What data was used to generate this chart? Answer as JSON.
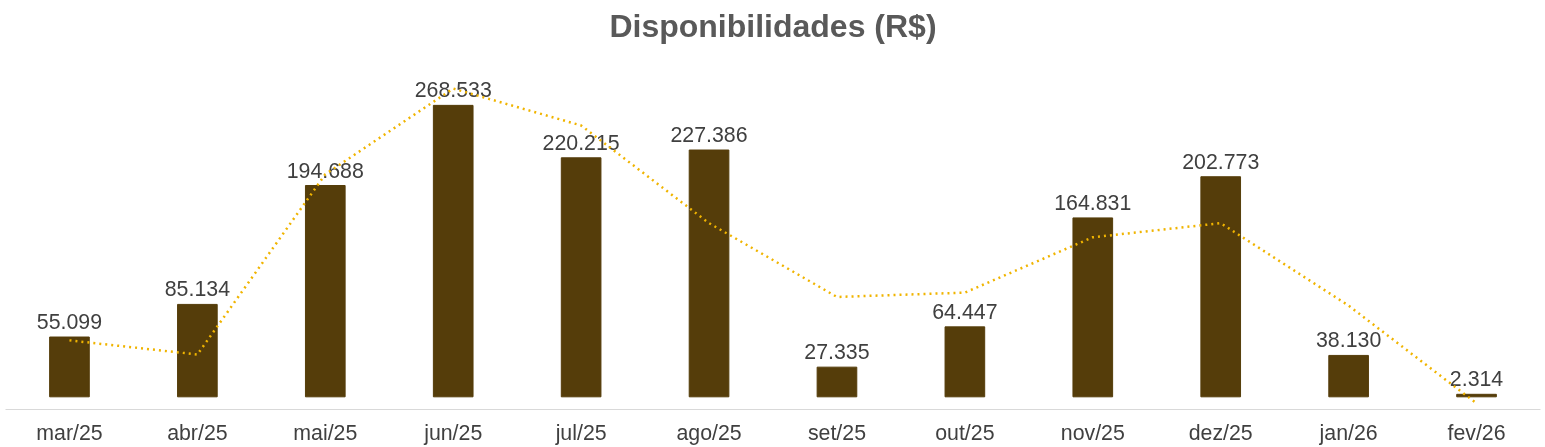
{
  "chart_data": {
    "type": "bar",
    "title": "Disponibilidades (R$)",
    "categories": [
      "mar/25",
      "abr/25",
      "mai/25",
      "jun/25",
      "jul/25",
      "ago/25",
      "set/25",
      "out/25",
      "nov/25",
      "dez/25",
      "jan/26",
      "fev/26"
    ],
    "series": [
      {
        "color": "#553d0a",
        "values": [
          55099,
          85134,
          194688,
          268533,
          220215,
          227386,
          27335,
          64447,
          164831,
          202773,
          38130,
          2314
        ],
        "value_labels": [
          "55.099",
          "85.134",
          "194.688",
          "268.533",
          "220.215",
          "227.386",
          "27.335",
          "64.447",
          "164.831",
          "202.773",
          "38.130",
          "2.314"
        ]
      },
      {
        "type": "line",
        "color": "#f0b400",
        "line_style": "dotted",
        "marker": "none",
        "values": [
          52000,
          39000,
          205000,
          284000,
          250000,
          160000,
          92000,
          96000,
          147000,
          160000,
          84000,
          -6000
        ]
      }
    ],
    "grid": false
  }
}
